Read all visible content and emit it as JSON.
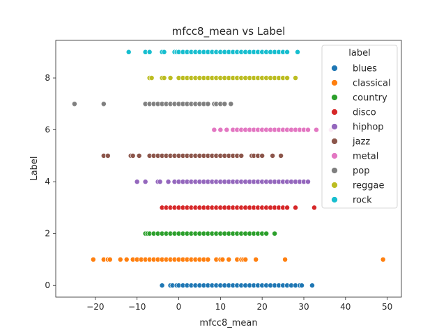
{
  "chart_data": {
    "type": "scatter",
    "title": "mfcc8_mean vs Label",
    "xlabel": "mfcc8_mean",
    "ylabel": "Label",
    "xlim": [
      -29.5,
      53.4
    ],
    "ylim": [
      -0.45,
      9.45
    ],
    "xticks": [
      -20,
      -10,
      0,
      10,
      20,
      30,
      40,
      50
    ],
    "xtick_labels": [
      "−20",
      "−10",
      "0",
      "10",
      "20",
      "30",
      "40",
      "50"
    ],
    "yticks": [
      0,
      2,
      4,
      6,
      8
    ],
    "yticks_labels": [
      "0",
      "2",
      "4",
      "6",
      "8"
    ],
    "grid": false,
    "legend": {
      "title": "label",
      "placement": "top-right"
    },
    "series": [
      {
        "name": "blues",
        "color": "#1f77b4",
        "y": 0,
        "x": [
          -4,
          -2,
          -1.5,
          -0.5,
          0,
          1,
          2,
          3,
          4,
          5,
          6,
          7,
          8,
          9,
          10,
          11,
          12,
          13,
          14,
          15,
          16,
          17,
          18,
          19,
          20,
          21,
          22,
          23,
          24,
          25,
          26,
          27,
          28,
          29,
          29.5,
          32
        ]
      },
      {
        "name": "classical",
        "color": "#ff7f0e",
        "y": 1,
        "x": [
          -20.5,
          -18,
          -17,
          -16.5,
          -14,
          -12.5,
          -11,
          -10,
          -9,
          -8,
          -7,
          -6,
          -5,
          -4,
          -3,
          -2,
          -1,
          0,
          1,
          2,
          3,
          4,
          5,
          6,
          7,
          9,
          10,
          10.5,
          12,
          14,
          15,
          15.5,
          16,
          18.5,
          25.5,
          49
        ]
      },
      {
        "name": "country",
        "color": "#2ca02c",
        "y": 2,
        "x": [
          -8,
          -7.5,
          -7,
          -6,
          -5,
          -4,
          -3,
          -2,
          -1,
          0,
          1,
          2,
          3,
          4,
          5,
          6,
          7,
          8,
          9,
          10,
          11,
          12,
          13,
          14,
          15,
          16,
          17,
          18,
          19,
          20,
          21,
          23
        ]
      },
      {
        "name": "disco",
        "color": "#d62728",
        "y": 3,
        "x": [
          -4,
          -3,
          -2,
          -1,
          0,
          1,
          2,
          3,
          4,
          5,
          6,
          7,
          8,
          9,
          10,
          11,
          12,
          13,
          14,
          15,
          16,
          17,
          18,
          19,
          20,
          21,
          22,
          23,
          24,
          25,
          26,
          28,
          32.5
        ]
      },
      {
        "name": "hiphop",
        "color": "#9467bd",
        "y": 4,
        "x": [
          -10,
          -8,
          -5,
          -4.5,
          -2.5,
          -1,
          0,
          1,
          2,
          3,
          4,
          5,
          6,
          7,
          8,
          9,
          10,
          11,
          12,
          13,
          14,
          15,
          16,
          17,
          18,
          19,
          20,
          21,
          22,
          23,
          24,
          25,
          26,
          27,
          28,
          29,
          30,
          31
        ]
      },
      {
        "name": "jazz",
        "color": "#8c564b",
        "y": 5,
        "x": [
          -18,
          -17,
          -11.5,
          -11,
          -9.5,
          -7,
          -6,
          -5,
          -4,
          -3,
          -2,
          -1,
          0,
          1,
          2,
          3,
          4,
          5,
          6,
          7,
          8,
          9,
          10,
          11,
          12,
          13,
          14,
          15,
          17.5,
          18,
          19,
          20,
          22.5,
          24.5
        ]
      },
      {
        "name": "metal",
        "color": "#e377c2",
        "y": 6,
        "x": [
          8.5,
          10,
          11.5,
          13,
          14,
          15,
          16,
          17,
          18,
          19,
          20,
          21,
          22,
          23,
          24,
          25,
          26,
          27,
          28,
          29,
          30,
          31,
          33,
          36.5
        ]
      },
      {
        "name": "pop",
        "color": "#7f7f7f",
        "y": 7,
        "x": [
          -25,
          -18,
          -8,
          -7,
          -6,
          -5,
          -4,
          -3,
          -2,
          -1,
          0,
          1,
          2,
          3,
          4,
          5,
          6,
          7,
          8.5,
          9,
          10,
          11,
          12.5
        ]
      },
      {
        "name": "reggae",
        "color": "#bcbd22",
        "y": 8,
        "x": [
          -7,
          -6.5,
          -4,
          -3.5,
          -2,
          0,
          1,
          2,
          3,
          4,
          5,
          6,
          7,
          8,
          9,
          10,
          11,
          12,
          13,
          14,
          15,
          16,
          17,
          18,
          19,
          20,
          21,
          22,
          23,
          24,
          25,
          26,
          28
        ]
      },
      {
        "name": "rock",
        "color": "#17becf",
        "y": 9,
        "x": [
          -12,
          -8,
          -7,
          -4,
          -3.5,
          -1,
          -0.5,
          0,
          1,
          2,
          3,
          4,
          5,
          6,
          7,
          8,
          9,
          10,
          11,
          12,
          13,
          14,
          15,
          16,
          17,
          18,
          19,
          20,
          21,
          22,
          23,
          24,
          25,
          26,
          28.5
        ]
      }
    ]
  }
}
